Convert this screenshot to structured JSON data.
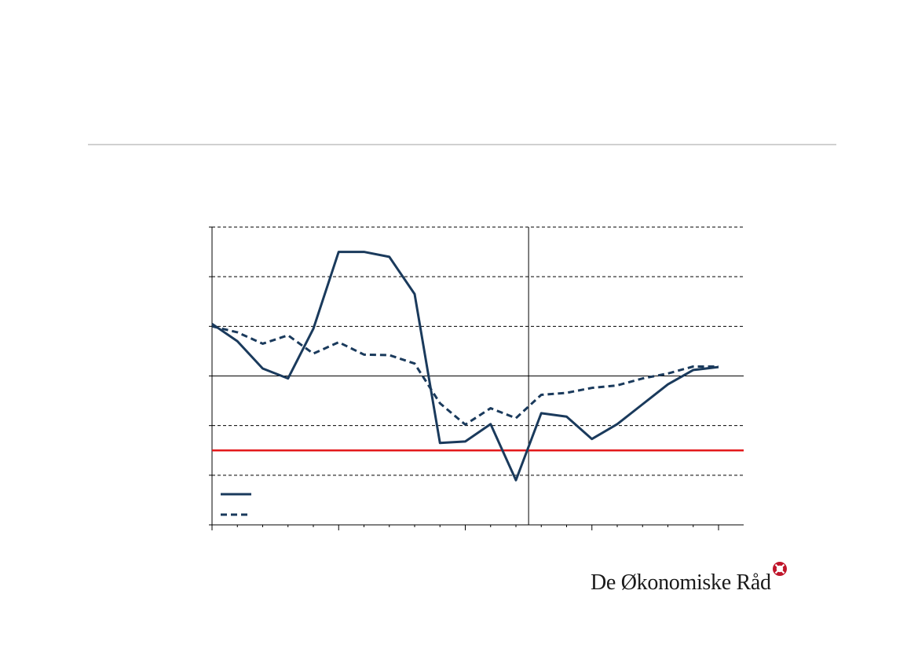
{
  "brand": {
    "name": "De Økonomiske Råd",
    "accent": "#c0152a"
  },
  "colors": {
    "series": "#1a3a5c",
    "reference": "#e3191b",
    "grid": "#000000"
  },
  "chart_data": {
    "type": "line",
    "title": "",
    "xlabel": "",
    "ylabel": "",
    "x": [
      0,
      1,
      2,
      3,
      4,
      5,
      6,
      7,
      8,
      9,
      10,
      11,
      12,
      13,
      14,
      15,
      16,
      17,
      18,
      19,
      20
    ],
    "ylim": [
      -3,
      3
    ],
    "gridlines": [
      -2,
      -1,
      1,
      2,
      3
    ],
    "zero_line": 0,
    "forecast_start_x": 12.5,
    "reference_line": -1.5,
    "legend_placement": "bottom-left",
    "series": [
      {
        "style": "solid",
        "values": [
          1.05,
          0.7,
          0.15,
          -0.05,
          0.95,
          2.5,
          2.5,
          2.4,
          1.65,
          -1.35,
          -1.32,
          -0.97,
          -2.1,
          -0.75,
          -0.82,
          -1.27,
          -0.97,
          -0.57,
          -0.17,
          0.12,
          0.18
        ]
      },
      {
        "style": "dashed",
        "values": [
          1.0,
          0.88,
          0.65,
          0.82,
          0.45,
          0.68,
          0.43,
          0.42,
          0.25,
          -0.55,
          -0.98,
          -0.65,
          -0.85,
          -0.38,
          -0.34,
          -0.24,
          -0.19,
          -0.05,
          0.05,
          0.19,
          0.19
        ]
      }
    ]
  }
}
